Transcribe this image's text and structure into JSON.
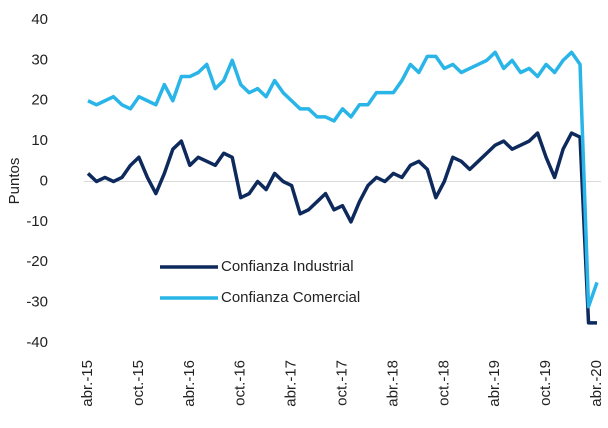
{
  "chart_data": {
    "type": "line",
    "y_label": "Puntos",
    "categories": [
      "abr.-15",
      null,
      null,
      null,
      null,
      null,
      "oct.-15",
      null,
      null,
      null,
      null,
      null,
      "abr.-16",
      null,
      null,
      null,
      null,
      null,
      "oct.-16",
      null,
      null,
      null,
      null,
      null,
      "abr.-17",
      null,
      null,
      null,
      null,
      null,
      "oct.-17",
      null,
      null,
      null,
      null,
      null,
      "abr.-18",
      null,
      null,
      null,
      null,
      null,
      "oct.-18",
      null,
      null,
      null,
      null,
      null,
      "abr.-19",
      null,
      null,
      null,
      null,
      null,
      "oct.-19",
      null,
      null,
      null,
      null,
      null,
      "abr.-20"
    ],
    "series": [
      {
        "name": "Confianza Industrial",
        "color": "#0e2a5c",
        "values": [
          2,
          0,
          1,
          0,
          1,
          4,
          6,
          1,
          -3,
          2,
          8,
          10,
          4,
          6,
          5,
          4,
          7,
          6,
          -4,
          -3,
          0,
          -2,
          2,
          0,
          -1,
          -8,
          -7,
          -5,
          -3,
          -7,
          -6,
          -10,
          -5,
          -1,
          1,
          0,
          2,
          1,
          4,
          5,
          3,
          -4,
          0,
          6,
          5,
          3,
          5,
          7,
          9,
          10,
          8,
          9,
          10,
          12,
          6,
          1,
          8,
          12,
          11,
          -35,
          -35
        ]
      },
      {
        "name": "Confianza Comercial",
        "color": "#29b5e8",
        "values": [
          20,
          19,
          20,
          21,
          19,
          18,
          21,
          20,
          19,
          24,
          20,
          26,
          26,
          27,
          29,
          23,
          25,
          30,
          24,
          22,
          23,
          21,
          25,
          22,
          20,
          18,
          18,
          16,
          16,
          15,
          18,
          16,
          19,
          19,
          22,
          22,
          22,
          25,
          29,
          27,
          31,
          31,
          28,
          29,
          27,
          28,
          29,
          30,
          32,
          28,
          30,
          27,
          28,
          26,
          29,
          27,
          30,
          32,
          29,
          -31,
          -25
        ]
      }
    ],
    "ylim": [
      -40,
      40
    ],
    "yticks": [
      -40,
      -30,
      -20,
      -10,
      0,
      10,
      20,
      30,
      40
    ],
    "grid": false
  }
}
